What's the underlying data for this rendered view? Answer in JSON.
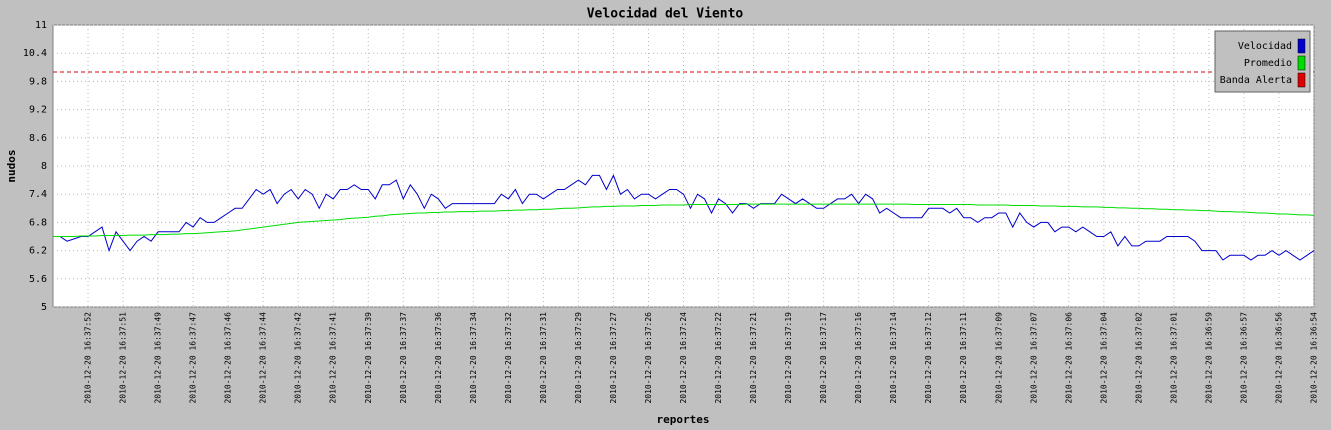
{
  "chart_data": {
    "type": "line",
    "title": "Velocidad del Viento",
    "x_label": "reportes",
    "y_label": "nudos",
    "categories": [
      null,
      null,
      null,
      null,
      null,
      "2010-12-20 16:37:52",
      null,
      null,
      null,
      null,
      "2010-12-20 16:37:51",
      null,
      null,
      null,
      null,
      "2010-12-20 16:37:49",
      null,
      null,
      null,
      null,
      "2010-12-20 16:37:47",
      null,
      null,
      null,
      null,
      "2010-12-20 16:37:46",
      null,
      null,
      null,
      null,
      "2010-12-20 16:37:44",
      null,
      null,
      null,
      null,
      "2010-12-20 16:37:42",
      null,
      null,
      null,
      null,
      "2010-12-20 16:37:41",
      null,
      null,
      null,
      null,
      "2010-12-20 16:37:39",
      null,
      null,
      null,
      null,
      "2010-12-20 16:37:37",
      null,
      null,
      null,
      null,
      "2010-12-20 16:37:36",
      null,
      null,
      null,
      null,
      "2010-12-20 16:37:34",
      null,
      null,
      null,
      null,
      "2010-12-20 16:37:32",
      null,
      null,
      null,
      null,
      "2010-12-20 16:37:31",
      null,
      null,
      null,
      null,
      "2010-12-20 16:37:29",
      null,
      null,
      null,
      null,
      "2010-12-20 16:37:27",
      null,
      null,
      null,
      null,
      "2010-12-20 16:37:26",
      null,
      null,
      null,
      null,
      "2010-12-20 16:37:24",
      null,
      null,
      null,
      null,
      "2010-12-20 16:37:22",
      null,
      null,
      null,
      null,
      "2010-12-20 16:37:21",
      null,
      null,
      null,
      null,
      "2010-12-20 16:37:19",
      null,
      null,
      null,
      null,
      "2010-12-20 16:37:17",
      null,
      null,
      null,
      null,
      "2010-12-20 16:37:16",
      null,
      null,
      null,
      null,
      "2010-12-20 16:37:14",
      null,
      null,
      null,
      null,
      "2010-12-20 16:37:12",
      null,
      null,
      null,
      null,
      "2010-12-20 16:37:11",
      null,
      null,
      null,
      null,
      "2010-12-20 16:37:09",
      null,
      null,
      null,
      null,
      "2010-12-20 16:37:07",
      null,
      null,
      null,
      null,
      "2010-12-20 16:37:06",
      null,
      null,
      null,
      null,
      "2010-12-20 16:37:04",
      null,
      null,
      null,
      null,
      "2010-12-20 16:37:02",
      null,
      null,
      null,
      null,
      "2010-12-20 16:37:01",
      null,
      null,
      null,
      null,
      "2010-12-20 16:36:59",
      null,
      null,
      null,
      null,
      "2010-12-20 16:36:57",
      null,
      null,
      null,
      null,
      "2010-12-20 16:36:56",
      null,
      null,
      null,
      null,
      "2010-12-20 16:36:54"
    ],
    "series": [
      {
        "name": "Velocidad",
        "color": "#0000cc",
        "values": [
          6.5,
          6.5,
          6.4,
          6.45,
          6.5,
          6.5,
          6.6,
          6.7,
          6.2,
          6.6,
          6.4,
          6.2,
          6.4,
          6.5,
          6.4,
          6.6,
          6.6,
          6.6,
          6.6,
          6.8,
          6.7,
          6.9,
          6.8,
          6.8,
          6.9,
          7.0,
          7.1,
          7.1,
          7.3,
          7.5,
          7.4,
          7.5,
          7.2,
          7.4,
          7.5,
          7.3,
          7.5,
          7.4,
          7.1,
          7.4,
          7.3,
          7.5,
          7.5,
          7.6,
          7.5,
          7.5,
          7.3,
          7.6,
          7.6,
          7.7,
          7.3,
          7.6,
          7.4,
          7.1,
          7.4,
          7.3,
          7.1,
          7.2,
          7.2,
          7.2,
          7.2,
          7.2,
          7.2,
          7.2,
          7.4,
          7.3,
          7.5,
          7.2,
          7.4,
          7.4,
          7.3,
          7.4,
          7.5,
          7.5,
          7.6,
          7.7,
          7.6,
          7.8,
          7.8,
          7.5,
          7.8,
          7.4,
          7.5,
          7.3,
          7.4,
          7.4,
          7.3,
          7.4,
          7.5,
          7.5,
          7.4,
          7.1,
          7.4,
          7.3,
          7.0,
          7.3,
          7.2,
          7.0,
          7.2,
          7.2,
          7.1,
          7.2,
          7.2,
          7.2,
          7.4,
          7.3,
          7.2,
          7.3,
          7.2,
          7.1,
          7.1,
          7.2,
          7.3,
          7.3,
          7.4,
          7.2,
          7.4,
          7.3,
          7.0,
          7.1,
          7.0,
          6.9,
          6.9,
          6.9,
          6.9,
          7.1,
          7.1,
          7.1,
          7.0,
          7.1,
          6.9,
          6.9,
          6.8,
          6.9,
          6.9,
          7.0,
          7.0,
          6.7,
          7.0,
          6.8,
          6.7,
          6.8,
          6.8,
          6.6,
          6.7,
          6.7,
          6.6,
          6.7,
          6.6,
          6.5,
          6.5,
          6.6,
          6.3,
          6.5,
          6.3,
          6.3,
          6.4,
          6.4,
          6.4,
          6.5,
          6.5,
          6.5,
          6.5,
          6.4,
          6.2,
          6.2,
          6.2,
          6.0,
          6.1,
          6.1,
          6.1,
          6.0,
          6.1,
          6.1,
          6.2,
          6.1,
          6.2,
          6.1,
          6.0,
          6.1,
          6.2
        ]
      },
      {
        "name": "Promedio",
        "color": "#00dd00",
        "values": [
          6.5,
          6.5,
          6.5,
          6.5,
          6.51,
          6.51,
          6.51,
          6.52,
          6.52,
          6.52,
          6.52,
          6.53,
          6.53,
          6.53,
          6.54,
          6.54,
          6.54,
          6.55,
          6.55,
          6.56,
          6.56,
          6.57,
          6.58,
          6.59,
          6.6,
          6.61,
          6.62,
          6.64,
          6.66,
          6.68,
          6.7,
          6.72,
          6.74,
          6.76,
          6.78,
          6.8,
          6.81,
          6.82,
          6.83,
          6.84,
          6.85,
          6.86,
          6.88,
          6.89,
          6.9,
          6.91,
          6.93,
          6.94,
          6.96,
          6.97,
          6.98,
          6.99,
          7.0,
          7.0,
          7.01,
          7.01,
          7.02,
          7.02,
          7.03,
          7.03,
          7.03,
          7.04,
          7.04,
          7.04,
          7.05,
          7.05,
          7.06,
          7.06,
          7.07,
          7.07,
          7.08,
          7.08,
          7.09,
          7.1,
          7.1,
          7.11,
          7.12,
          7.13,
          7.13,
          7.14,
          7.14,
          7.15,
          7.15,
          7.15,
          7.16,
          7.16,
          7.16,
          7.17,
          7.17,
          7.17,
          7.17,
          7.18,
          7.18,
          7.18,
          7.18,
          7.18,
          7.18,
          7.18,
          7.18,
          7.19,
          7.19,
          7.19,
          7.19,
          7.19,
          7.19,
          7.19,
          7.19,
          7.19,
          7.19,
          7.19,
          7.19,
          7.19,
          7.19,
          7.19,
          7.19,
          7.19,
          7.19,
          7.19,
          7.19,
          7.19,
          7.19,
          7.19,
          7.19,
          7.18,
          7.18,
          7.18,
          7.18,
          7.18,
          7.18,
          7.18,
          7.18,
          7.18,
          7.17,
          7.17,
          7.17,
          7.17,
          7.17,
          7.16,
          7.16,
          7.16,
          7.16,
          7.15,
          7.15,
          7.15,
          7.14,
          7.14,
          7.14,
          7.13,
          7.13,
          7.13,
          7.12,
          7.12,
          7.11,
          7.11,
          7.1,
          7.1,
          7.09,
          7.09,
          7.08,
          7.08,
          7.07,
          7.07,
          7.06,
          7.06,
          7.05,
          7.05,
          7.04,
          7.03,
          7.03,
          7.02,
          7.02,
          7.01,
          7.0,
          7.0,
          6.99,
          6.98,
          6.98,
          6.97,
          6.96,
          6.96,
          6.95
        ]
      }
    ],
    "threshold": {
      "name": "Banda Alerta",
      "color": "#dd0000",
      "value": 10
    },
    "ylim": [
      5,
      11
    ],
    "yticks": [
      5,
      5.6,
      6.2,
      6.8,
      7.4,
      8,
      8.6,
      9.2,
      9.8,
      10.4,
      11
    ],
    "grid": true,
    "legend": "upper right"
  }
}
